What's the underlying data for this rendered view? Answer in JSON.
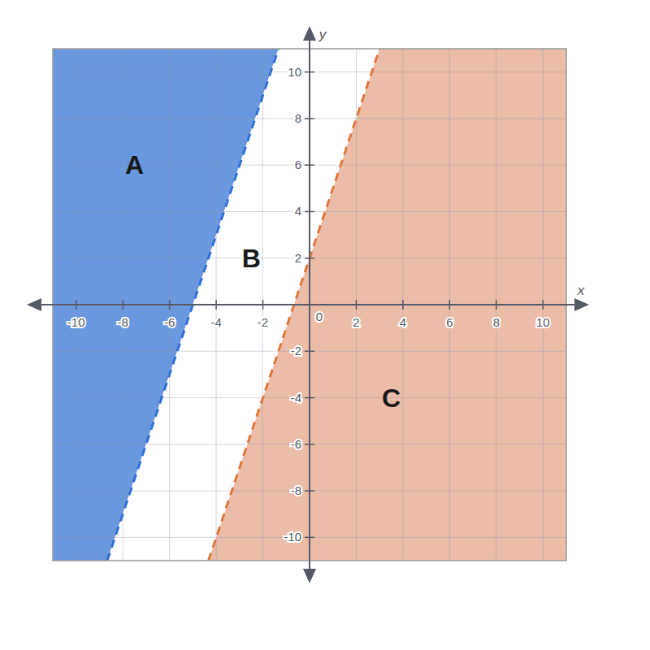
{
  "chart_data": {
    "type": "inequality",
    "xlim": [
      -11,
      11
    ],
    "ylim": [
      -11,
      11
    ],
    "xticks": [
      -10,
      -8,
      -6,
      -4,
      -2,
      0,
      2,
      4,
      6,
      8,
      10
    ],
    "yticks": [
      -10,
      -8,
      -6,
      -4,
      -2,
      2,
      4,
      6,
      8,
      10
    ],
    "x_label": "x",
    "y_label": "y",
    "grid": true,
    "series": [
      {
        "color": "#2f6fd6",
        "line_style": "dashed",
        "x": [
          -8.67,
          -1.33
        ],
        "values": [
          -11,
          11
        ]
      },
      {
        "color": "#e0783c",
        "line_style": "dashed",
        "x": [
          -4.33,
          3
        ],
        "values": [
          -11,
          11
        ]
      }
    ],
    "regions": [
      {
        "label": "A",
        "x": -7.5,
        "y": 6,
        "color": "#6a98de",
        "boundary": [
          0
        ],
        "side": "left"
      },
      {
        "label": "B",
        "x": -2.5,
        "y": 2,
        "color": "#ffffff",
        "boundary": [
          0,
          1
        ],
        "side": "between"
      },
      {
        "label": "C",
        "x": 3.5,
        "y": -4,
        "color": "#ebbca8",
        "boundary": [
          1
        ],
        "side": "right"
      }
    ]
  }
}
